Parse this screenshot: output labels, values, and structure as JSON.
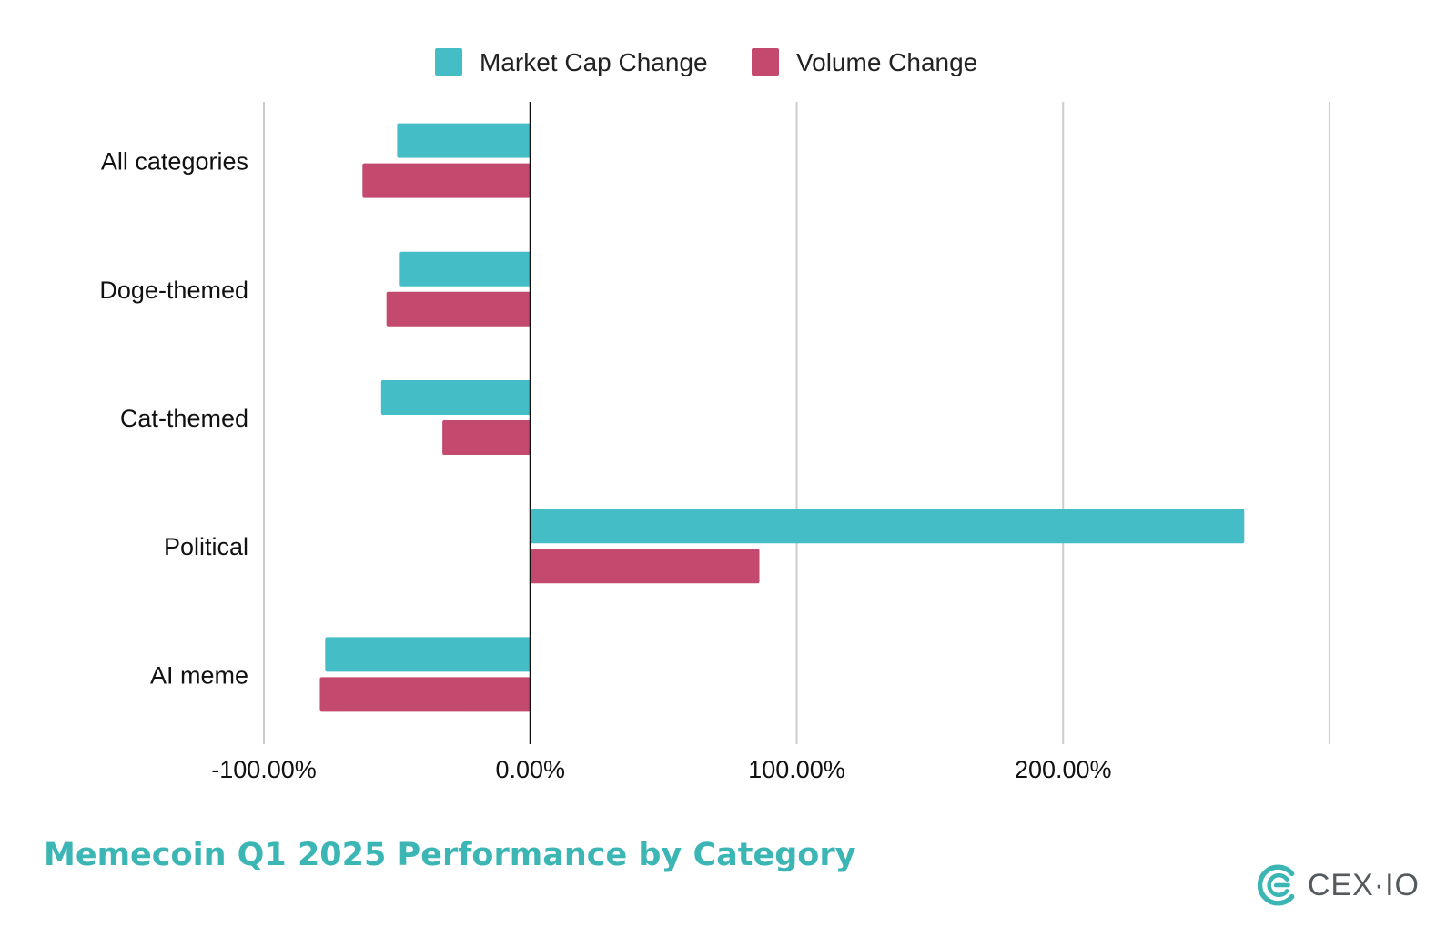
{
  "footer": {
    "title": "Memecoin Q1 2025 Performance by Category"
  },
  "brand": {
    "name": "CEX·IO",
    "icon": "cex-io-logo-icon",
    "color": "#3cb6b4"
  },
  "chart_data": {
    "type": "bar",
    "orientation": "horizontal",
    "categories": [
      "All categories",
      "Doge-themed",
      "Cat-themed",
      "Political",
      "AI meme"
    ],
    "series": [
      {
        "name": "Market Cap Change",
        "color": "#45bdc6",
        "values": [
          -50,
          -49,
          -56,
          268,
          -77
        ]
      },
      {
        "name": "Volume Change",
        "color": "#c4496f",
        "values": [
          -63,
          -54,
          -33,
          86,
          -79
        ]
      }
    ],
    "xlim": [
      -100,
      300
    ],
    "x_ticks": [
      -100,
      0,
      100,
      200,
      300
    ],
    "x_tick_labels": [
      "-100.00%",
      "0.00%",
      "100.00%",
      "200.00%",
      ""
    ],
    "legend_position": "top-center",
    "grid": true
  }
}
